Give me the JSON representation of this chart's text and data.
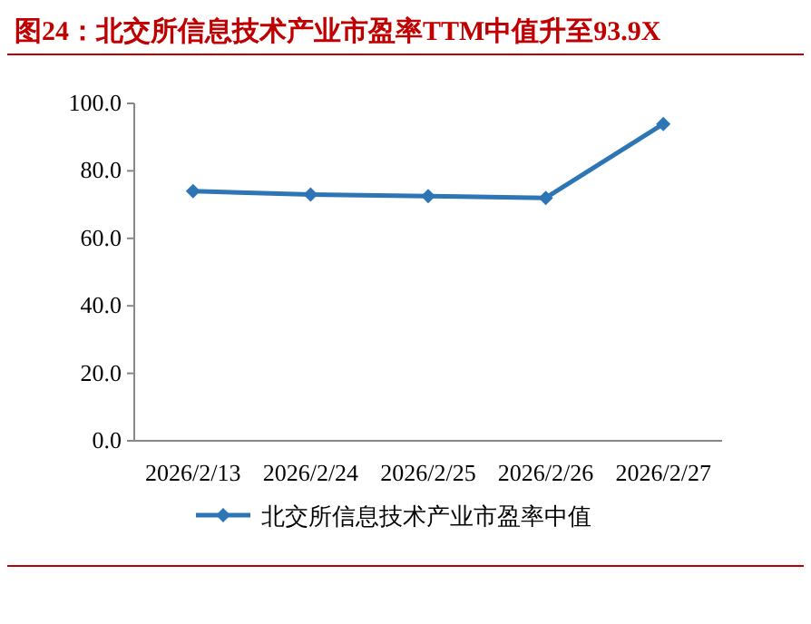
{
  "chart_data": {
    "type": "line",
    "title": "图24：北交所信息技术产业市盈率TTM中值升至93.9X",
    "categories": [
      "2026/2/13",
      "2026/2/24",
      "2026/2/25",
      "2026/2/26",
      "2026/2/27"
    ],
    "series": [
      {
        "name": "北交所信息技术产业市盈率中值",
        "color": "#2e75b6",
        "values": [
          74.0,
          73.0,
          72.5,
          72.0,
          93.9
        ]
      }
    ],
    "ylim": [
      0,
      100
    ],
    "yticks": [
      {
        "value": 0,
        "label": "0.0"
      },
      {
        "value": 20,
        "label": "20.0"
      },
      {
        "value": 40,
        "label": "40.0"
      },
      {
        "value": 60,
        "label": "60.0"
      },
      {
        "value": 80,
        "label": "80.0"
      },
      {
        "value": 100,
        "label": "100.0"
      }
    ],
    "marker": "diamond",
    "legend": "bottom"
  }
}
